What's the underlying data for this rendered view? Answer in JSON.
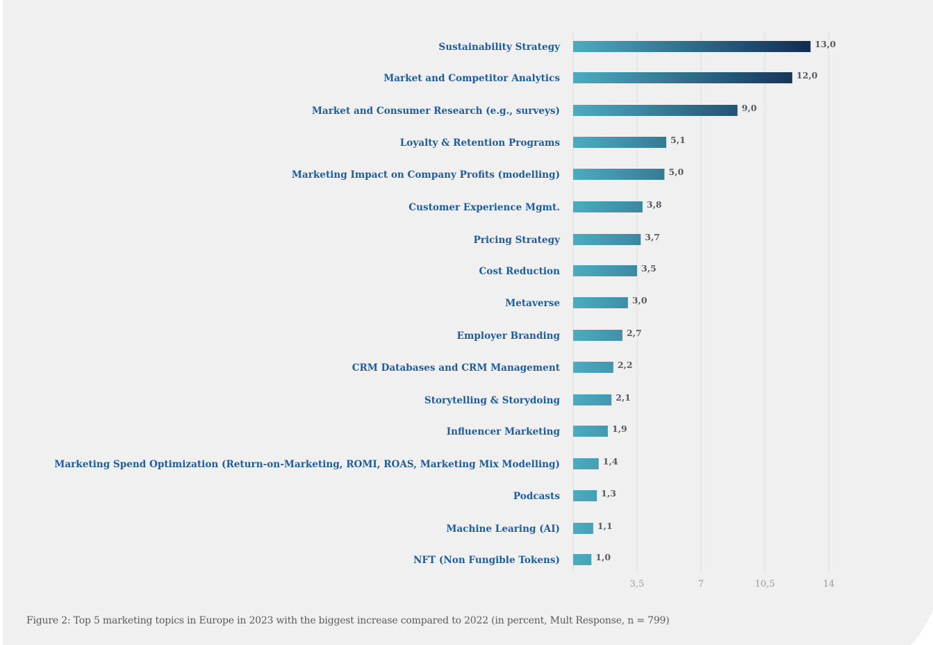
{
  "chart_data": {
    "type": "bar",
    "orientation": "horizontal",
    "categories": [
      "Sustainability Strategy",
      "Market and Competitor Analytics",
      "Market and Consumer Research (e.g., surveys)",
      "Loyalty & Retention Programs",
      "Marketing Impact on Company Profits (modelling)",
      "Customer Experience Mgmt.",
      "Pricing Strategy",
      "Cost Reduction",
      "Metaverse",
      "Employer Branding",
      "CRM Databases and CRM Management",
      "Storytelling & Storydoing",
      "Influencer Marketing",
      "Marketing Spend Optimization (Return-on-Marketing, ROMI, ROAS, Marketing Mix Modelling)",
      "Podcasts",
      "Machine Learing (AI)",
      "NFT (Non Fungible Tokens)"
    ],
    "values": [
      13.0,
      12.0,
      9.0,
      5.1,
      5.0,
      3.8,
      3.7,
      3.5,
      3.0,
      2.7,
      2.2,
      2.1,
      1.9,
      1.4,
      1.3,
      1.1,
      1.0
    ],
    "value_labels": [
      "13,0",
      "12,0",
      "9,0",
      "5,1",
      "5,0",
      "3,8",
      "3,7",
      "3,5",
      "3,0",
      "2,7",
      "2,2",
      "2,1",
      "1,9",
      "1,4",
      "1,3",
      "1,1",
      "1,0"
    ],
    "xlim": [
      0,
      14
    ],
    "xticks": [
      3.5,
      7,
      10.5,
      14
    ],
    "xtick_labels": [
      "3,5",
      "7",
      "10,5",
      "14"
    ],
    "grid": true,
    "title": "",
    "xlabel": "",
    "ylabel": "",
    "colors": {
      "bar_gradient_start": "#4bacc0",
      "bar_gradient_end": "#12294f",
      "category_label": "#1f5c9c",
      "value_label": "#555a60",
      "tick_label": "#9a9a9a",
      "gridline": "#dcdcdc",
      "background": "#f0f0f0"
    }
  },
  "caption": "Figure 2: Top 5 marketing topics in Europe in 2023 with the biggest increase compared to 2022 (in percent, Mult Response, n = 799)"
}
